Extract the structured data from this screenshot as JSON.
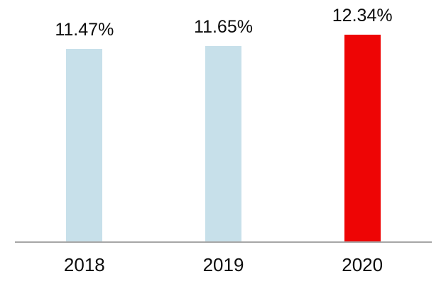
{
  "chart_data": {
    "type": "bar",
    "title": "",
    "xlabel": "",
    "ylabel": "",
    "categories": [
      "2018",
      "2019",
      "2020"
    ],
    "values": [
      11.47,
      11.65,
      12.34
    ],
    "value_labels": [
      "11.47%",
      "11.65%",
      "12.34%"
    ],
    "unit": "%",
    "ylim": [
      0,
      14.4
    ],
    "grid": false,
    "legend": false,
    "bar_colors": [
      "#C7E0EA",
      "#C7E0EA",
      "#EE0505"
    ],
    "highlight_index": 2,
    "axis_line_color": "#A6A6A6",
    "label_color": "#0c0c0c"
  }
}
